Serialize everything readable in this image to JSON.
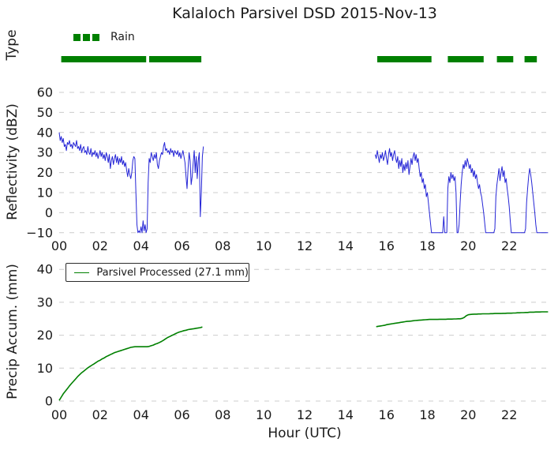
{
  "title": "Kalaloch Parsivel DSD 2015-Nov-13",
  "colors": {
    "rain_green": "#008000",
    "reflectivity_blue": "#2525d6",
    "grid_gray": "#cccccc",
    "text_black": "#1a1a1a"
  },
  "panels": {
    "type": {
      "ylabel": "Type",
      "legend_label": "Rain"
    },
    "reflectivity": {
      "ylabel": "Reflectivity (dBZ)"
    },
    "precip": {
      "ylabel": "Precip Accum. (mm)",
      "legend_label": "Parsivel Processed (27.1 mm)"
    }
  },
  "x_axis": {
    "label": "Hour (UTC)",
    "range_hours": [
      0,
      24
    ],
    "tick_hours": [
      0,
      2,
      4,
      6,
      8,
      10,
      12,
      14,
      16,
      18,
      20,
      22
    ],
    "tick_labels": [
      "00",
      "02",
      "04",
      "06",
      "08",
      "10",
      "12",
      "14",
      "16",
      "18",
      "20",
      "22"
    ]
  },
  "chart_data": [
    {
      "id": "rain_type",
      "type": "bar",
      "title": "Precipitation type timeline",
      "series_name": "Rain",
      "periods_hours": [
        [
          0.1,
          4.25
        ],
        [
          4.4,
          6.95
        ],
        [
          15.55,
          18.2
        ],
        [
          19.0,
          20.75
        ],
        [
          21.4,
          22.2
        ],
        [
          22.75,
          23.35
        ]
      ]
    },
    {
      "id": "reflectivity",
      "type": "line",
      "ylabel": "Reflectivity (dBZ)",
      "ylim": [
        -10,
        62.5
      ],
      "yticks": [
        60,
        50,
        40,
        30,
        20,
        10,
        0,
        -10
      ],
      "grid": true,
      "segments": [
        {
          "x_start": 0.0,
          "x_step": 0.05,
          "values": [
            40,
            36,
            38,
            35,
            37,
            33,
            34,
            31,
            35,
            34,
            36,
            33,
            34,
            32,
            35,
            34,
            33,
            36,
            32,
            33,
            31,
            34,
            30,
            32,
            33,
            30,
            31,
            29,
            33,
            30,
            29,
            32,
            28,
            30,
            29,
            31,
            28,
            30,
            27,
            29,
            31,
            28,
            30,
            27,
            29,
            26,
            30,
            28,
            25,
            29,
            22,
            26,
            28,
            24,
            27,
            29,
            25,
            28,
            24,
            27,
            25,
            28,
            24,
            26,
            23,
            25,
            21,
            18,
            22,
            19,
            17,
            20,
            26,
            28,
            27,
            10,
            -6,
            -10,
            -9,
            -10,
            -7,
            -10,
            -4,
            -9,
            -6,
            -10,
            -8,
            15,
            27,
            25,
            30,
            28,
            26,
            29,
            27,
            30,
            24,
            22,
            26,
            28,
            30,
            29,
            33,
            35,
            31,
            32,
            30,
            31,
            29,
            32,
            30,
            31,
            28,
            31,
            30,
            29,
            31,
            28,
            30,
            27,
            29,
            31,
            28,
            25,
            18,
            12,
            22,
            30,
            26,
            14,
            18,
            25,
            31,
            20,
            28,
            17,
            26,
            30,
            -2,
            10,
            28,
            33
          ]
        },
        {
          "x_start": 15.45,
          "x_step": 0.05,
          "values": [
            29,
            27,
            31,
            28,
            25,
            29,
            27,
            30,
            26,
            28,
            31,
            27,
            24,
            29,
            32,
            28,
            30,
            26,
            29,
            31,
            27,
            25,
            28,
            22,
            26,
            23,
            27,
            20,
            24,
            21,
            25,
            22,
            26,
            19,
            23,
            27,
            24,
            28,
            30,
            26,
            29,
            25,
            27,
            22,
            18,
            20,
            15,
            17,
            12,
            14,
            8,
            10,
            5,
            0,
            -5,
            -10,
            -10,
            -10,
            -10,
            -10,
            -10,
            -10,
            -10,
            -10,
            -10,
            -10,
            -10,
            -2,
            -10,
            -10,
            -10,
            12,
            18,
            15,
            20,
            17,
            19,
            16,
            18,
            10,
            -10,
            -10,
            -6,
            5,
            14,
            20,
            24,
            22,
            26,
            23,
            27,
            25,
            22,
            24,
            20,
            22,
            18,
            21,
            17,
            19,
            15,
            12,
            14,
            10,
            8,
            4,
            0,
            -5,
            -10,
            -10,
            -10,
            -10,
            -10,
            -10,
            -10,
            -10,
            -10,
            -8,
            8,
            14,
            18,
            22,
            16,
            20,
            23,
            18,
            21,
            15,
            17,
            12,
            8,
            3,
            -4,
            -10,
            -10,
            -10,
            -10,
            -10,
            -10,
            -10,
            -10,
            -10,
            -10,
            -10,
            -10,
            -10,
            -10,
            -8,
            5,
            12,
            18,
            22,
            19,
            15,
            10,
            5,
            0,
            -6,
            -10,
            -10,
            -10,
            -10,
            -10,
            -10,
            -10,
            -10,
            -10,
            -10,
            -10,
            -10
          ]
        }
      ]
    },
    {
      "id": "precip_accum",
      "type": "line",
      "ylabel": "Precip Accum. (mm)",
      "ylim": [
        0,
        42
      ],
      "yticks": [
        0,
        10,
        20,
        30,
        40
      ],
      "grid": true,
      "legend": "Parsivel Processed (27.1 mm)",
      "total_mm": 27.1,
      "segments": [
        {
          "x_start": 0.0,
          "x_step": 0.1,
          "values": [
            0.2,
            1.2,
            2.2,
            3.0,
            3.8,
            4.6,
            5.3,
            6.0,
            6.7,
            7.4,
            8.0,
            8.6,
            9.1,
            9.6,
            10.1,
            10.5,
            10.9,
            11.3,
            11.7,
            12.1,
            12.4,
            12.8,
            13.1,
            13.5,
            13.8,
            14.1,
            14.4,
            14.7,
            14.9,
            15.1,
            15.3,
            15.5,
            15.7,
            15.9,
            16.1,
            16.3,
            16.4,
            16.5,
            16.5,
            16.5,
            16.5,
            16.5,
            16.5,
            16.5,
            16.6,
            16.8,
            17.0,
            17.3,
            17.5,
            17.8,
            18.1,
            18.5,
            18.9,
            19.3,
            19.6,
            19.9,
            20.2,
            20.5,
            20.8,
            21.0,
            21.2,
            21.4,
            21.5,
            21.7,
            21.8,
            21.9,
            22.0,
            22.1,
            22.2,
            22.3,
            22.5
          ]
        },
        {
          "x_start": 15.5,
          "x_step": 0.1,
          "values": [
            22.6,
            22.7,
            22.8,
            22.9,
            23.0,
            23.2,
            23.3,
            23.4,
            23.5,
            23.6,
            23.7,
            23.8,
            23.9,
            24.0,
            24.1,
            24.2,
            24.25,
            24.3,
            24.4,
            24.45,
            24.5,
            24.55,
            24.6,
            24.65,
            24.7,
            24.75,
            24.8,
            24.8,
            24.8,
            24.8,
            24.8,
            24.85,
            24.85,
            24.85,
            24.85,
            24.9,
            24.9,
            24.9,
            24.95,
            24.95,
            25.0,
            25.0,
            25.1,
            25.4,
            25.9,
            26.2,
            26.3,
            26.35,
            26.4,
            26.4,
            26.45,
            26.45,
            26.5,
            26.5,
            26.5,
            26.5,
            26.55,
            26.55,
            26.6,
            26.6,
            26.6,
            26.6,
            26.65,
            26.65,
            26.7,
            26.7,
            26.7,
            26.75,
            26.75,
            26.8,
            26.8,
            26.85,
            26.85,
            26.9,
            26.9,
            27.0,
            27.0,
            27.0,
            27.05,
            27.05,
            27.05,
            27.1,
            27.1,
            27.1,
            27.1
          ]
        }
      ]
    }
  ]
}
